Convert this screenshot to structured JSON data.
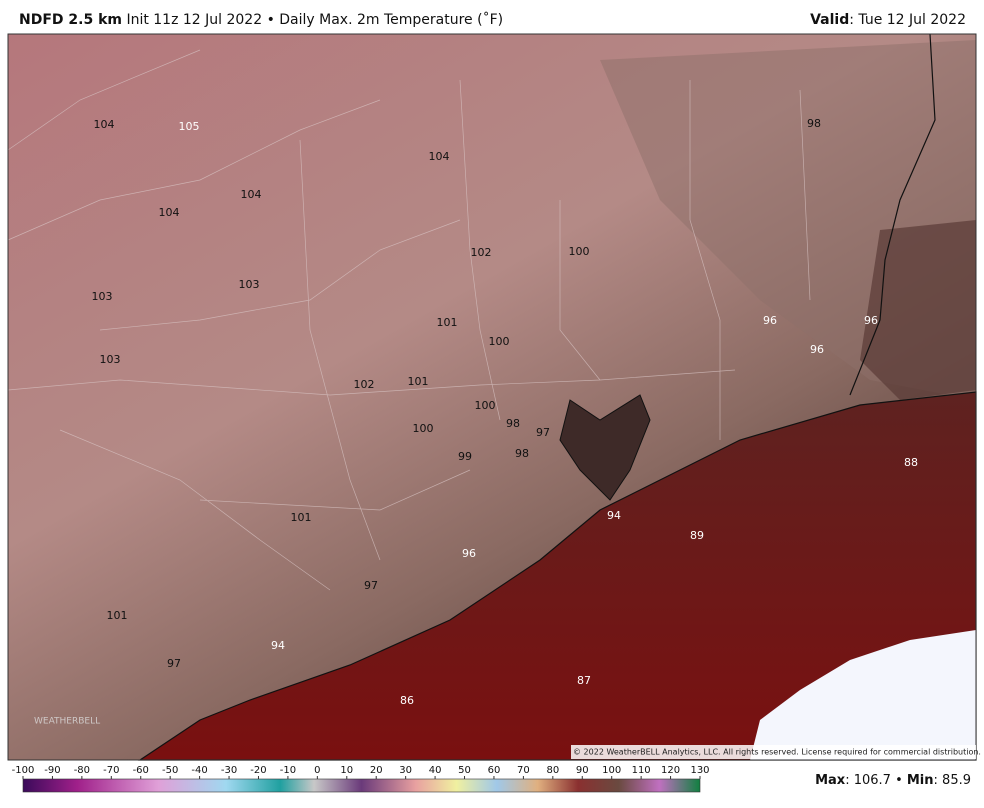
{
  "header": {
    "model": "NDFD 2.5 km",
    "description": "Init 11z 12 Jul 2022 • Daily Max. 2m Temperature (˚F)",
    "valid_label": "Valid",
    "valid_value": ": Tue 12 Jul 2022"
  },
  "map": {
    "labels": [
      104,
      105,
      104,
      98,
      104,
      104,
      102,
      100,
      103,
      103,
      101,
      100,
      96,
      96,
      96,
      103,
      102,
      101,
      100,
      98,
      97,
      100,
      99,
      98,
      88,
      94,
      89,
      101,
      96,
      97,
      101,
      94,
      97,
      87,
      86
    ],
    "copyright": "© 2022 WeatherBELL Analytics, LLC. All rights reserved. License required for commercial distribution.",
    "logo": "WEATHERBELL"
  },
  "colorbar": {
    "lim": [
      -100,
      130
    ],
    "ticks": [
      -100,
      -90,
      -80,
      -70,
      -60,
      -50,
      -40,
      -30,
      -20,
      -10,
      0,
      10,
      20,
      30,
      40,
      50,
      60,
      70,
      80,
      90,
      100,
      110,
      120,
      130
    ]
  },
  "footer": {
    "max_label": "Max",
    "max_value": ": 106.7 • ",
    "min_label": "Min",
    "min_value": ": 85.9"
  }
}
